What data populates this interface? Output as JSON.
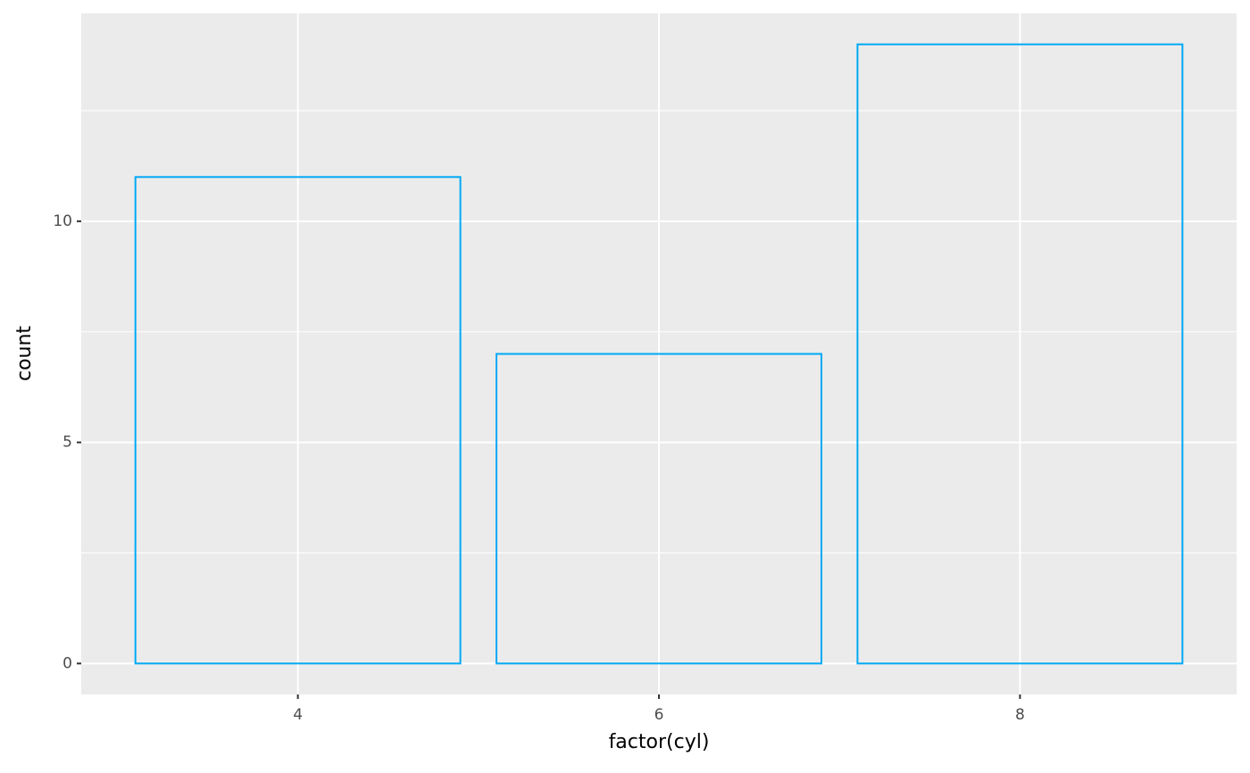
{
  "chart_data": {
    "type": "bar",
    "x_label": "factor(cyl)",
    "y_label": "count",
    "categories": [
      "4",
      "6",
      "8"
    ],
    "values": [
      11,
      7,
      14
    ],
    "color": "#00a9f4",
    "ylim": [
      -0.7,
      14.7
    ],
    "yticks": [
      0,
      5,
      10
    ],
    "y_minor_grid": [
      2.5,
      7.5,
      12.5
    ],
    "grid": true
  }
}
